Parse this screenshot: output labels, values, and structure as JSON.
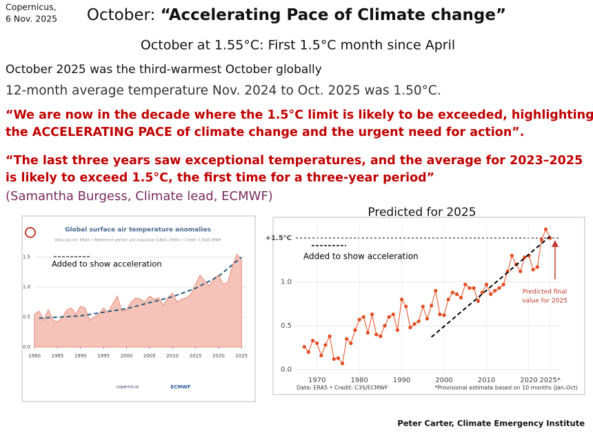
{
  "header": {
    "source": [
      "Copernicus,",
      "6 Nov. 2025"
    ],
    "title_prefix": "October: ",
    "title_emphasis": "“Accelerating Pace of Climate change”",
    "subtitle": "October at 1.55°C: First 1.5°C month since April"
  },
  "points": [
    "October 2025 was the third-warmest October globally",
    "12-month average temperature Nov. 2024 to Oct. 2025 was 1.50°C."
  ],
  "quotes": [
    [
      "“We are now in the decade where the 1.5°C limit is likely to be exceeded, highlighting",
      "the ACCELERATING PACE  of climate change and the urgent need for action”."
    ],
    [
      "“The last three years saw exceptional temperatures, and the average for 2023–2025",
      "is likely to exceed 1.5°C, the first time for a three-year period”"
    ]
  ],
  "attribution": "(Samantha Burgess, Climate lead, ECMWF)",
  "prediction_heading": "Predicted for 2025",
  "credit": "Peter Carter, Climate Emergency Institute",
  "chart_data": [
    {
      "type": "area",
      "title": "Global surface air temperature anomalies",
      "subtitle": "Data source: ERA5 • Reference period: pre-industrial (1850–1900) • Credit: C3S/ECMWF",
      "x": [
        1980,
        1981,
        1982,
        1983,
        1984,
        1985,
        1986,
        1987,
        1988,
        1989,
        1990,
        1991,
        1992,
        1993,
        1994,
        1995,
        1996,
        1997,
        1998,
        1999,
        2000,
        2001,
        2002,
        2003,
        2004,
        2005,
        2006,
        2007,
        2008,
        2009,
        2010,
        2011,
        2012,
        2013,
        2014,
        2015,
        2016,
        2017,
        2018,
        2019,
        2020,
        2021,
        2022,
        2023,
        2024,
        2025
      ],
      "values": [
        0.55,
        0.6,
        0.45,
        0.62,
        0.45,
        0.42,
        0.48,
        0.62,
        0.65,
        0.55,
        0.68,
        0.65,
        0.45,
        0.5,
        0.55,
        0.65,
        0.58,
        0.72,
        0.85,
        0.6,
        0.62,
        0.75,
        0.82,
        0.8,
        0.75,
        0.85,
        0.8,
        0.82,
        0.7,
        0.82,
        0.9,
        0.75,
        0.8,
        0.82,
        0.88,
        1.05,
        1.2,
        1.1,
        1.02,
        1.15,
        1.2,
        1.05,
        1.08,
        1.35,
        1.55,
        1.45
      ],
      "color": "#f6c3b9",
      "line_color": "#e58b7c",
      "xlim": [
        1980,
        2026
      ],
      "ylim": [
        0,
        1.6
      ],
      "xticks": [
        1980,
        1985,
        1990,
        1995,
        2000,
        2005,
        2010,
        2015,
        2020,
        2025
      ],
      "yticks": [
        {
          "value": 0,
          "label": "0.0"
        },
        0.5,
        {
          "value": 1,
          "label": "1.0"
        },
        1.5
      ],
      "grid": true,
      "fit": {
        "x": [
          1981,
          1990,
          2000,
          2010,
          2015,
          2020,
          2025
        ],
        "values": [
          0.48,
          0.52,
          0.64,
          0.84,
          0.98,
          1.18,
          1.5
        ],
        "color": "#2a5a7a"
      },
      "annotation": "Added to show acceleration",
      "logos": [
        "copernicus",
        "ECMWF"
      ]
    },
    {
      "type": "line",
      "x": [
        1967,
        1968,
        1969,
        1970,
        1971,
        1972,
        1973,
        1974,
        1975,
        1976,
        1977,
        1978,
        1979,
        1980,
        1981,
        1982,
        1983,
        1984,
        1985,
        1986,
        1987,
        1988,
        1989,
        1990,
        1991,
        1992,
        1993,
        1994,
        1995,
        1996,
        1997,
        1998,
        1999,
        2000,
        2001,
        2002,
        2003,
        2004,
        2005,
        2006,
        2007,
        2008,
        2009,
        2010,
        2011,
        2012,
        2013,
        2014,
        2015,
        2016,
        2017,
        2018,
        2019,
        2020,
        2021,
        2022,
        2023,
        2024,
        2025
      ],
      "values": [
        0.26,
        0.2,
        0.33,
        0.3,
        0.16,
        0.28,
        0.38,
        0.12,
        0.13,
        0.07,
        0.35,
        0.3,
        0.45,
        0.57,
        0.6,
        0.42,
        0.63,
        0.4,
        0.38,
        0.5,
        0.6,
        0.63,
        0.45,
        0.8,
        0.72,
        0.48,
        0.52,
        0.55,
        0.72,
        0.58,
        0.73,
        0.9,
        0.63,
        0.62,
        0.8,
        0.88,
        0.86,
        0.82,
        0.97,
        0.93,
        0.93,
        0.78,
        0.88,
        0.97,
        0.86,
        0.9,
        0.93,
        0.97,
        1.12,
        1.3,
        1.2,
        1.12,
        1.28,
        1.3,
        1.14,
        1.17,
        1.48,
        1.6,
        1.5
      ],
      "color": "#e34a1f",
      "xlim": [
        1965,
        2027
      ],
      "ylim": [
        -0.05,
        1.65
      ],
      "xticks": [
        1970,
        1980,
        1990,
        2000,
        2010,
        2020,
        {
          "value": 2025,
          "label": "2025*"
        }
      ],
      "yticks": [
        {
          "value": 0,
          "label": "0.0"
        },
        0.5,
        {
          "value": 1,
          "label": "1.0"
        },
        {
          "value": 1.5,
          "label": "+1.5°C"
        }
      ],
      "grid": true,
      "trend": {
        "x": [
          1997,
          2025
        ],
        "values": [
          0.37,
          1.52
        ]
      },
      "annotation": "Added to show acceleration",
      "prediction_note": [
        "Predicted final",
        "value for 2025"
      ],
      "source": "Data: ERA5 • Credit: C3S/ECMWF",
      "footnote": "*Provisional estimate based on 10 months (Jan-Oct)"
    }
  ]
}
